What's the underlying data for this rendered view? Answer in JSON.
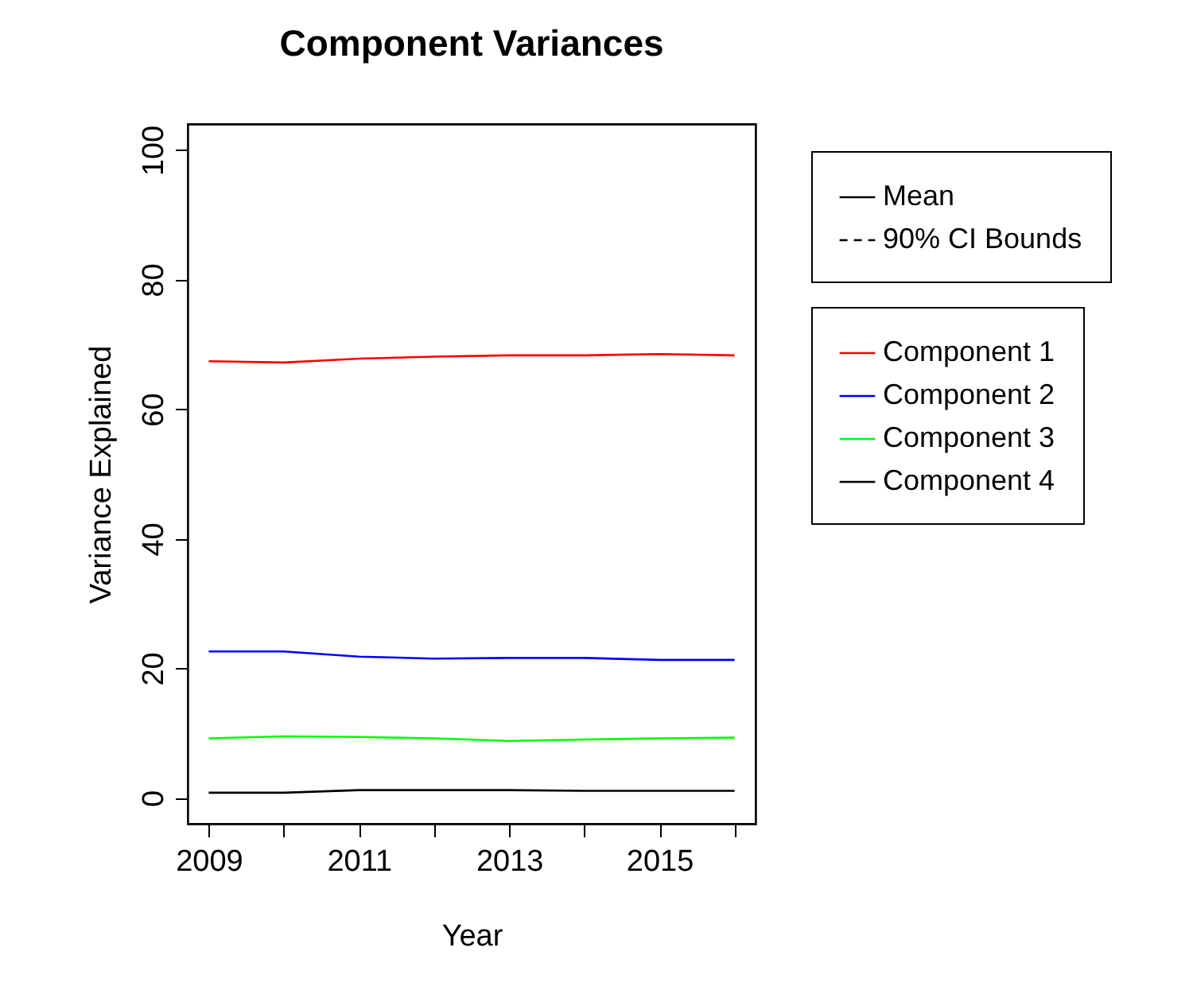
{
  "chart_data": {
    "type": "line",
    "title": "Component Variances",
    "xlabel": "Year",
    "ylabel": "Variance Explained",
    "x": [
      2009,
      2010,
      2011,
      2012,
      2013,
      2014,
      2015,
      2016
    ],
    "xlim": [
      2008.72,
      2016.28
    ],
    "xticks": [
      2009,
      {
        "value": 2010,
        "label": null
      },
      2011,
      {
        "value": 2012,
        "label": null
      },
      2013,
      {
        "value": 2014,
        "label": null
      },
      2015,
      {
        "value": 2016,
        "label": null
      }
    ],
    "ylim": [
      -4,
      104
    ],
    "yticks": [
      0,
      20,
      40,
      60,
      80,
      100
    ],
    "grid": false,
    "legend": "top right",
    "line_style": "solid",
    "annotations": [
      "Mean",
      "90% CI Bounds"
    ],
    "series": [
      {
        "name": "Component 1",
        "color": "#ff0000",
        "values": [
          67.4,
          67.2,
          67.8,
          68.1,
          68.3,
          68.3,
          68.5,
          68.3
        ]
      },
      {
        "name": "Component 2",
        "color": "#0000ff",
        "values": [
          22.6,
          22.6,
          21.8,
          21.5,
          21.6,
          21.6,
          21.3,
          21.3
        ]
      },
      {
        "name": "Component 3",
        "color": "#00ff00",
        "values": [
          9.2,
          9.5,
          9.4,
          9.2,
          8.8,
          9.0,
          9.2,
          9.3
        ]
      },
      {
        "name": "Component 4",
        "color": "#000000",
        "values": [
          0.8,
          0.8,
          1.2,
          1.2,
          1.2,
          1.1,
          1.1,
          1.1
        ]
      }
    ]
  }
}
